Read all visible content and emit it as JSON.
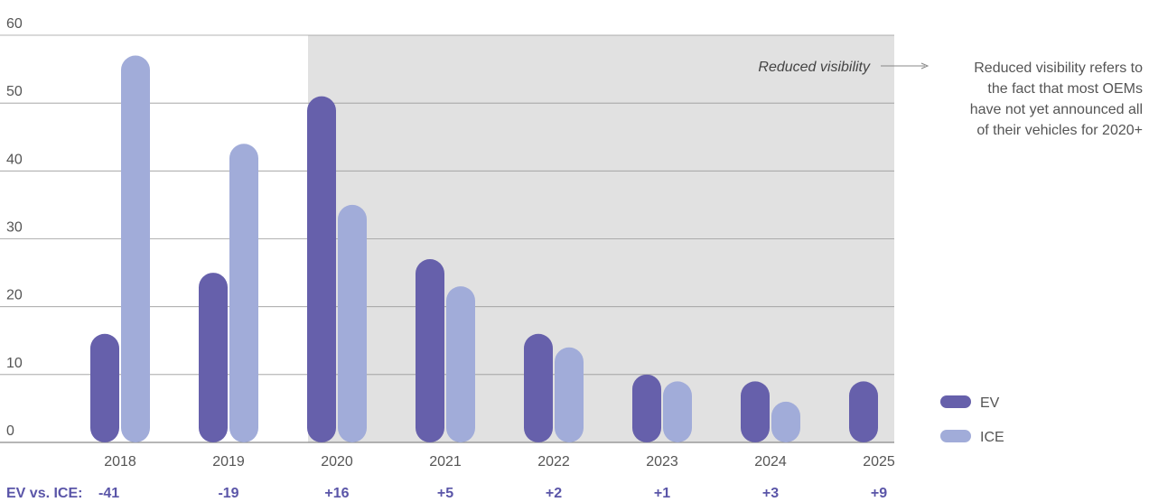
{
  "chart_data": {
    "type": "bar",
    "categories": [
      "2018",
      "2019",
      "2020",
      "2021",
      "2022",
      "2023",
      "2024",
      "2025"
    ],
    "series": [
      {
        "name": "EV",
        "color": "#6660ab",
        "values": [
          16,
          25,
          51,
          27,
          16,
          10,
          9,
          9
        ]
      },
      {
        "name": "ICE",
        "color": "#a1acd9",
        "values": [
          57,
          44,
          35,
          23,
          14,
          9,
          6,
          null
        ]
      }
    ],
    "ylim": [
      0,
      60
    ],
    "yticks": [
      0,
      10,
      20,
      30,
      40,
      50,
      60
    ],
    "title": "",
    "xlabel": "",
    "ylabel": "",
    "grid": true,
    "legend": "bottom-right",
    "shaded_region": {
      "from": "2020",
      "to": "2025",
      "label": "Reduced visibility",
      "color": "#e1e1e1"
    },
    "note": [
      "Reduced visibility refers to",
      "the fact that most OEMs",
      "have not yet announced all",
      "of their vehicles for 2020+"
    ],
    "difference_row": {
      "label": "EV vs. ICE:",
      "color": "#5a55a8",
      "values": [
        "-41",
        "-19",
        "+16",
        "+5",
        "+2",
        "+1",
        "+3",
        "+9"
      ]
    }
  }
}
